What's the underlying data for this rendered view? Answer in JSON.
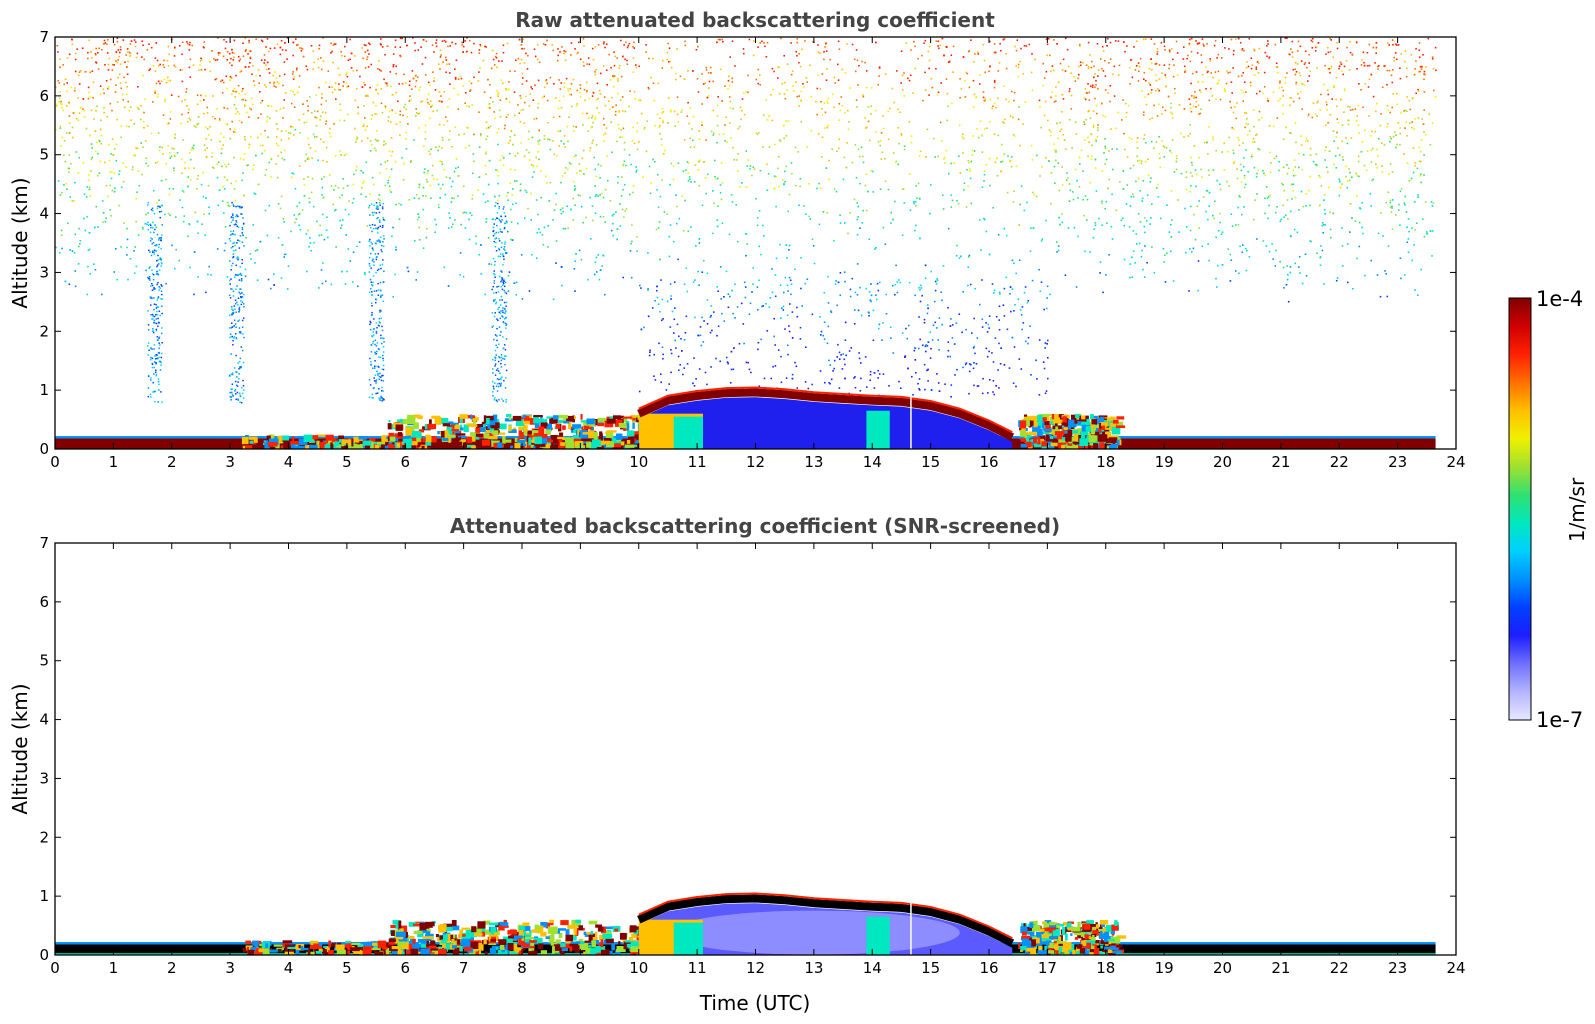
{
  "colorbar": {
    "label": "1/m/sr",
    "max_label": "1e-4",
    "min_label": "1e-7",
    "scale": "log",
    "range": [
      1e-07,
      0.0001
    ],
    "colormap": [
      "#e8e8ff",
      "#b4b4ff",
      "#7070ff",
      "#1e1eff",
      "#0040ff",
      "#0090ff",
      "#00d0ff",
      "#00e8c0",
      "#30e070",
      "#a0e030",
      "#f0f000",
      "#ffc000",
      "#ff7000",
      "#ff2000",
      "#d00000",
      "#800000"
    ]
  },
  "chart_data": [
    {
      "type": "heatmap",
      "title": "Raw attenuated backscattering coefficient",
      "xlabel": "",
      "ylabel": "Altitude (km)",
      "xlim": [
        0,
        24
      ],
      "ylim": [
        0,
        7
      ],
      "xticks": [
        "0",
        "1",
        "2",
        "3",
        "4",
        "5",
        "6",
        "7",
        "8",
        "9",
        "10",
        "11",
        "12",
        "13",
        "14",
        "15",
        "16",
        "17",
        "18",
        "19",
        "20",
        "21",
        "22",
        "23",
        "24"
      ],
      "yticks": [
        "0",
        "1",
        "2",
        "3",
        "4",
        "5",
        "6",
        "7"
      ],
      "data_end_time": 23.65,
      "surface_layer_top_km": 0.22,
      "boundary_layer_top_km": [
        [
          10.0,
          0.6
        ],
        [
          10.5,
          0.82
        ],
        [
          11,
          0.9
        ],
        [
          11.5,
          0.95
        ],
        [
          12,
          0.96
        ],
        [
          12.5,
          0.93
        ],
        [
          13,
          0.88
        ],
        [
          13.5,
          0.85
        ],
        [
          14,
          0.82
        ],
        [
          14.5,
          0.8
        ],
        [
          15,
          0.73
        ],
        [
          15.5,
          0.6
        ],
        [
          16,
          0.4
        ],
        [
          16.4,
          0.2
        ]
      ],
      "noisy_background_above_km": 2.5,
      "screened": false
    },
    {
      "type": "heatmap",
      "title": "Attenuated backscattering coefficient (SNR-screened)",
      "xlabel": "Time (UTC)",
      "ylabel": "Altitude (km)",
      "xlim": [
        0,
        24
      ],
      "ylim": [
        0,
        7
      ],
      "xticks": [
        "0",
        "1",
        "2",
        "3",
        "4",
        "5",
        "6",
        "7",
        "8",
        "9",
        "10",
        "11",
        "12",
        "13",
        "14",
        "15",
        "16",
        "17",
        "18",
        "19",
        "20",
        "21",
        "22",
        "23",
        "24"
      ],
      "yticks": [
        "0",
        "1",
        "2",
        "3",
        "4",
        "5",
        "6",
        "7"
      ],
      "data_end_time": 23.65,
      "surface_layer_top_km": 0.22,
      "boundary_layer_top_km": [
        [
          10.0,
          0.6
        ],
        [
          10.5,
          0.82
        ],
        [
          11,
          0.9
        ],
        [
          11.5,
          0.95
        ],
        [
          12,
          0.96
        ],
        [
          12.5,
          0.93
        ],
        [
          13,
          0.88
        ],
        [
          13.5,
          0.85
        ],
        [
          14,
          0.82
        ],
        [
          14.5,
          0.8
        ],
        [
          15,
          0.73
        ],
        [
          15.5,
          0.6
        ],
        [
          16,
          0.4
        ],
        [
          16.4,
          0.2
        ]
      ],
      "noisy_background_above_km": null,
      "screened": true
    }
  ]
}
